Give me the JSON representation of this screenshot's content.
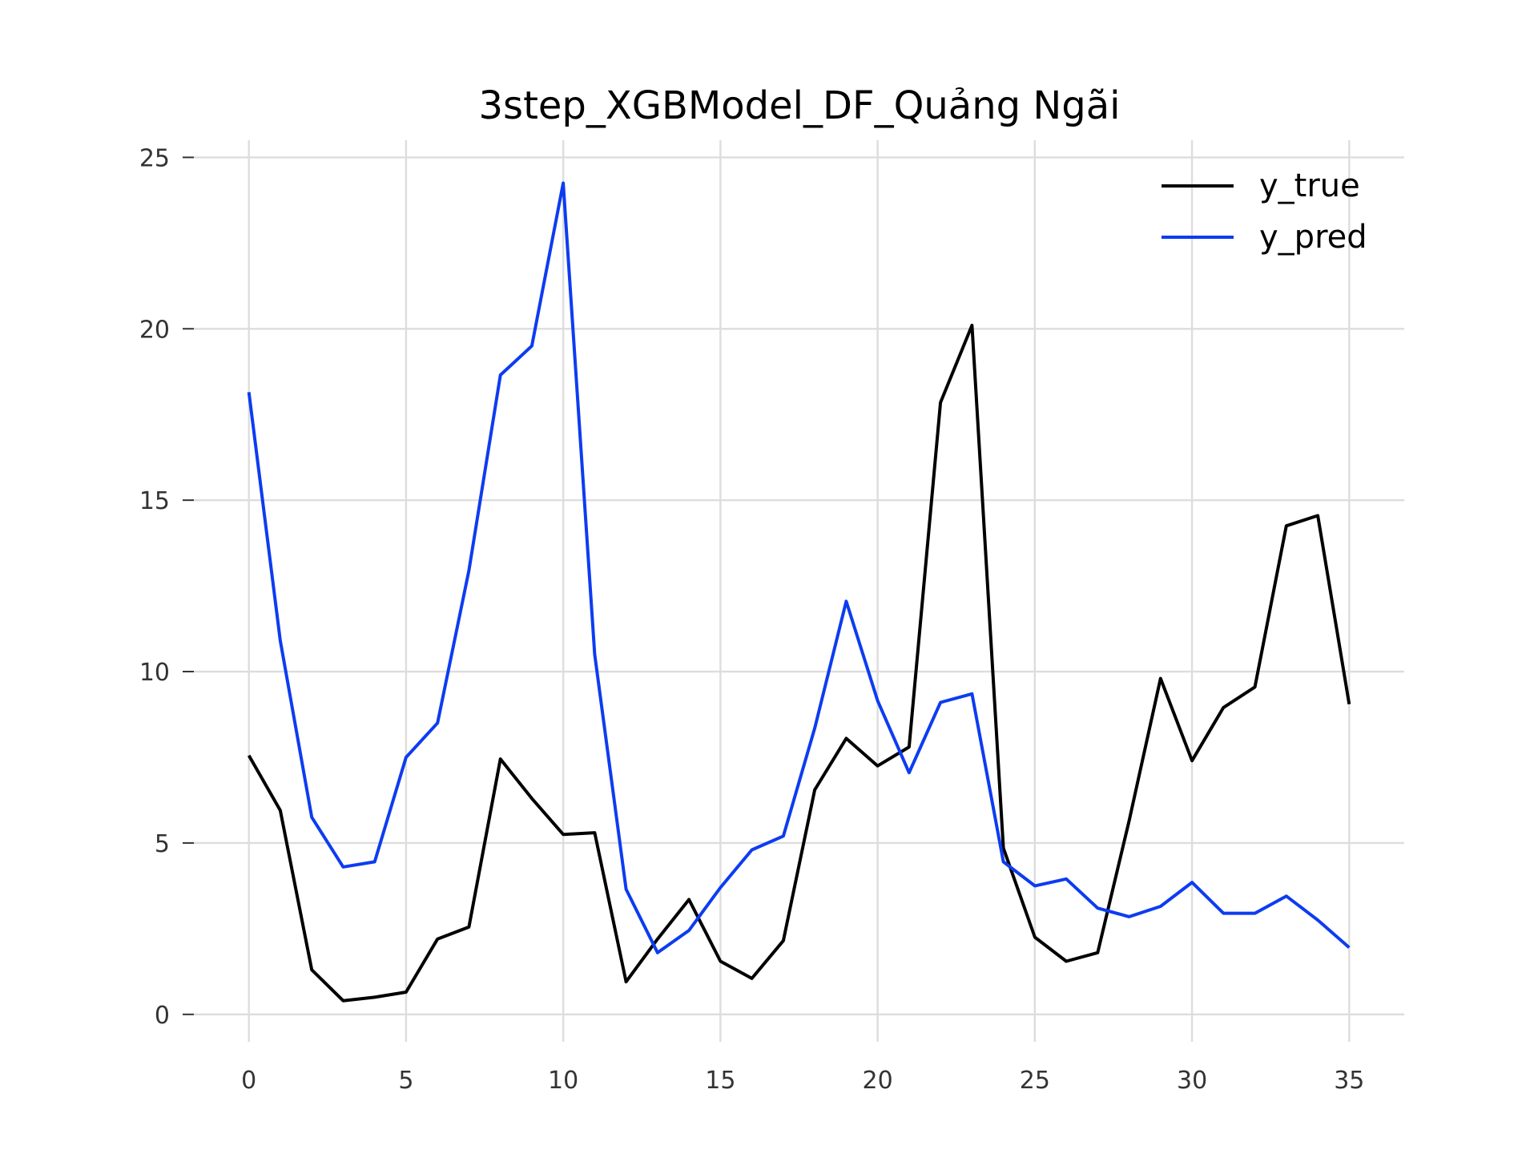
{
  "chart_data": {
    "type": "line",
    "title": "3step_XGBModel_DF_Quảng Ngãi",
    "xlabel": "",
    "ylabel": "",
    "xlim": [
      -1.75,
      36.75
    ],
    "ylim": [
      -0.8,
      25.5
    ],
    "x_ticks": [
      0,
      5,
      10,
      15,
      20,
      25,
      30,
      35
    ],
    "y_ticks": [
      0,
      5,
      10,
      15,
      20,
      25
    ],
    "grid": true,
    "legend_position": "top-right",
    "x": [
      0,
      1,
      2,
      3,
      4,
      5,
      6,
      7,
      8,
      9,
      10,
      11,
      12,
      13,
      14,
      15,
      16,
      17,
      18,
      19,
      20,
      21,
      22,
      23,
      24,
      25,
      26,
      27,
      28,
      29,
      30,
      31,
      32,
      33,
      34,
      35
    ],
    "series": [
      {
        "name": "y_true",
        "color": "#000000",
        "values": [
          7.55,
          5.95,
          1.3,
          0.4,
          0.5,
          0.65,
          2.2,
          2.55,
          7.45,
          6.3,
          5.25,
          5.3,
          0.95,
          2.2,
          3.35,
          1.55,
          1.05,
          2.15,
          6.55,
          8.05,
          7.25,
          7.8,
          17.85,
          20.1,
          4.85,
          2.25,
          1.55,
          1.8,
          5.65,
          9.8,
          7.4,
          8.95,
          9.55,
          14.25,
          14.55,
          9.05
        ]
      },
      {
        "name": "y_pred",
        "color": "#0d3cf0",
        "values": [
          18.15,
          10.9,
          5.75,
          4.3,
          4.45,
          7.5,
          8.5,
          12.95,
          18.65,
          19.5,
          24.25,
          10.5,
          3.65,
          1.8,
          2.45,
          3.7,
          4.8,
          5.2,
          8.35,
          12.05,
          9.15,
          7.05,
          9.1,
          9.35,
          4.45,
          3.75,
          3.95,
          3.1,
          2.85,
          3.15,
          3.85,
          2.95,
          2.95,
          3.45,
          2.75,
          1.95
        ]
      }
    ]
  }
}
